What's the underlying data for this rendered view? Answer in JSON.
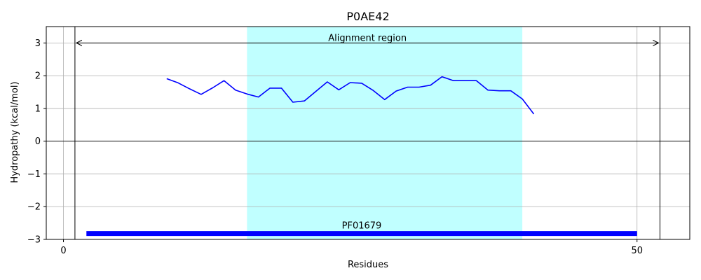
{
  "chart_data": {
    "type": "line",
    "title": "P0AE42",
    "xlabel": "Residues",
    "ylabel": "Hydropathy (kcal/mol)",
    "xlim": [
      -1.5,
      54.6
    ],
    "ylim": [
      -3,
      3.5
    ],
    "x_ticks": [
      0,
      50
    ],
    "y_ticks": [
      -3,
      -2,
      -1,
      0,
      1,
      2,
      3
    ],
    "y_tick_labels": [
      "−3",
      "−2",
      "−1",
      "0",
      "1",
      "2",
      "3"
    ],
    "grid": true,
    "colors": {
      "line": "#0000ff",
      "highlight": "#c0ffff",
      "domain": "#0000ff",
      "grid": "#b0b0b0"
    },
    "vertical_lines": [
      1,
      52
    ],
    "alignment_region": {
      "label": "Alignment region",
      "start": 1,
      "end": 52,
      "y": 3
    },
    "highlight_span": {
      "start": 16,
      "end": 40
    },
    "domain_bar": {
      "label": "PF01679",
      "start": 2,
      "end": 50,
      "y": -2.82
    },
    "series": [
      {
        "x": [
          9,
          10,
          11,
          12,
          13,
          14,
          15,
          16,
          17,
          18,
          19,
          20,
          21,
          22,
          23,
          24,
          25,
          26,
          27,
          28,
          29,
          30,
          31,
          32,
          33,
          34,
          35,
          36,
          37,
          38,
          39,
          40,
          41
        ],
        "values": [
          1.91,
          1.78,
          1.6,
          1.43,
          1.63,
          1.85,
          1.56,
          1.44,
          1.35,
          1.62,
          1.62,
          1.19,
          1.23,
          1.52,
          1.81,
          1.57,
          1.79,
          1.77,
          1.55,
          1.27,
          1.53,
          1.65,
          1.65,
          1.71,
          1.97,
          1.85,
          1.85,
          1.85,
          1.56,
          1.54,
          1.54,
          1.29,
          0.83
        ]
      }
    ]
  }
}
